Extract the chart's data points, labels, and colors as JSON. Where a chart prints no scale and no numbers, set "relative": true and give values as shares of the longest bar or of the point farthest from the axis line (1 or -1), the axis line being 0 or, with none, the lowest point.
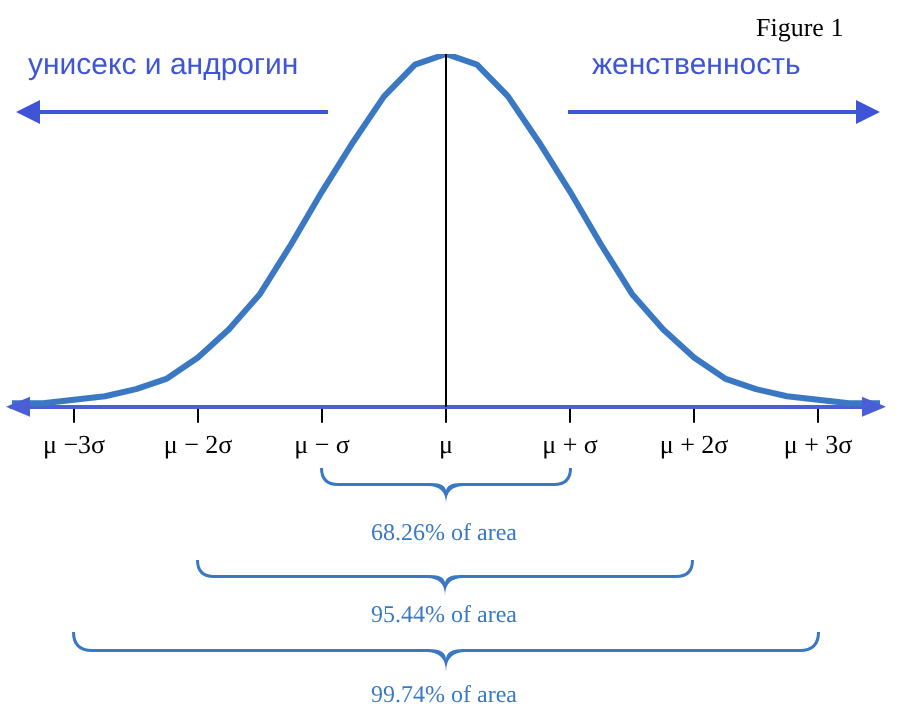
{
  "chart_data": {
    "type": "line",
    "relative": true,
    "x": [
      -3.5,
      -3.25,
      -3,
      -2.75,
      -2.5,
      -2.25,
      -2,
      -1.75,
      -1.5,
      -1.25,
      -1,
      -0.75,
      -0.5,
      -0.25,
      0,
      0.25,
      0.5,
      0.75,
      1,
      1.25,
      1.5,
      1.75,
      2,
      2.25,
      2.5,
      2.75,
      3,
      3.25,
      3.5
    ],
    "series": [
      {
        "color": "#3a78c4",
        "values": [
          0.01,
          0.01,
          0.02,
          0.03,
          0.05,
          0.08,
          0.14,
          0.22,
          0.32,
          0.46,
          0.61,
          0.75,
          0.88,
          0.97,
          1,
          0.97,
          0.88,
          0.75,
          0.61,
          0.46,
          0.32,
          0.22,
          0.14,
          0.08,
          0.05,
          0.03,
          0.02,
          0.01,
          0.01
        ]
      }
    ],
    "xlim": [
      -3.5,
      3.5
    ],
    "xticks": [
      {
        "value": -3,
        "label": "μ −3σ"
      },
      {
        "value": -2,
        "label": "μ − 2σ"
      },
      {
        "value": -1,
        "label": "μ − σ"
      },
      {
        "value": 0,
        "label": "μ"
      },
      {
        "value": 1,
        "label": "μ + σ"
      },
      {
        "value": 2,
        "label": "μ + 2σ"
      },
      {
        "value": 3,
        "label": "μ + 3σ"
      }
    ],
    "ref_lines": [
      {
        "axis": "x",
        "value": 0,
        "color": "#000000"
      }
    ],
    "grid": false,
    "legend": false,
    "marker": "none",
    "line_style": "solid",
    "annotations": [
      "Figure 1",
      "унисекс и андрогин",
      "женственность",
      "68.26% of area",
      "95.44% of area",
      "99.74% of area"
    ]
  }
}
